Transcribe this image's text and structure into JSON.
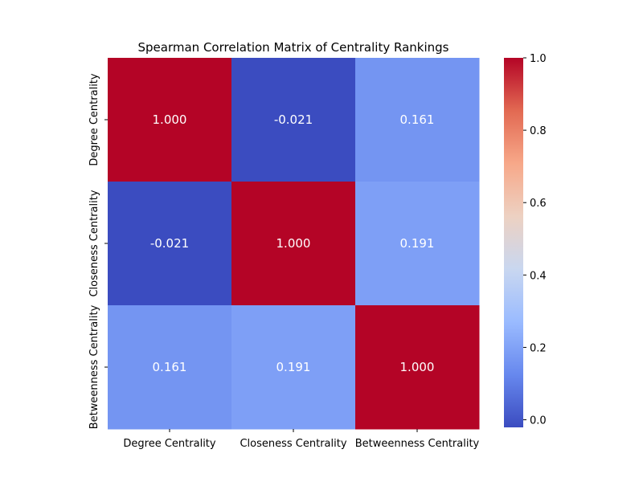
{
  "chart_data": {
    "type": "heatmap",
    "title": "Spearman Correlation Matrix of Centrality Rankings",
    "xlabel": "",
    "ylabel": "",
    "x_labels": [
      "Degree Centrality",
      "Closeness Centrality",
      "Betweenness Centrality"
    ],
    "y_labels": [
      "Degree Centrality",
      "Closeness Centrality",
      "Betweenness Centrality"
    ],
    "values": [
      [
        1.0,
        -0.021,
        0.161
      ],
      [
        -0.021,
        1.0,
        0.191
      ],
      [
        0.161,
        0.191,
        1.0
      ]
    ],
    "value_format_decimals": 3,
    "colormap": "coolwarm",
    "colormap_stops": [
      "#3b4cc0",
      "#6788ee",
      "#9abbff",
      "#c9d7f0",
      "#edd1c2",
      "#f7a889",
      "#e26952",
      "#b40426"
    ],
    "colorbar": {
      "vmin": -0.021,
      "vmax": 1.0,
      "ticks": [
        0.0,
        0.2,
        0.4,
        0.6,
        0.8,
        1.0
      ],
      "tick_labels": [
        "0.0",
        "0.2",
        "0.4",
        "0.6",
        "0.8",
        "1.0"
      ]
    },
    "annotation_colors": {
      "light": "#ffffff",
      "dark": "#262626"
    },
    "grid": false
  }
}
